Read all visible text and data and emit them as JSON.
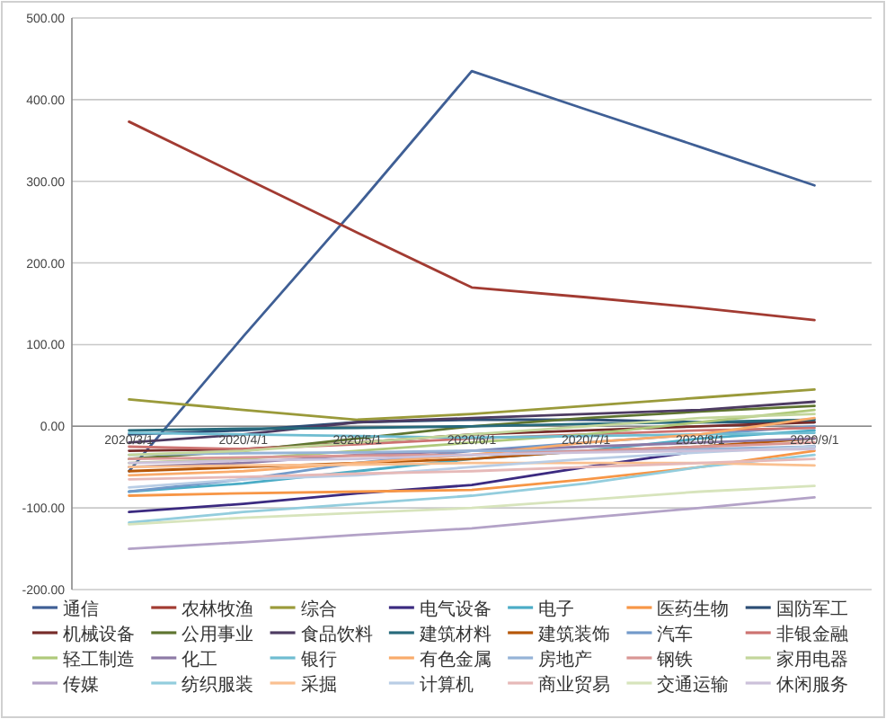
{
  "chart_data": {
    "type": "line",
    "categories": [
      "2020/3/1",
      "2020/4/1",
      "2020/5/1",
      "2020/6/1",
      "2020/7/1",
      "2020/8/1",
      "2020/9/1"
    ],
    "ylim": [
      -200,
      500
    ],
    "yticks": [
      {
        "value": -200,
        "label": "-200.00"
      },
      {
        "value": -100,
        "label": "-100.00"
      },
      {
        "value": 0,
        "label": "0.00"
      },
      {
        "value": 100,
        "label": "100.00"
      },
      {
        "value": 200,
        "label": "200.00"
      },
      {
        "value": 300,
        "label": "300.00"
      },
      {
        "value": 400,
        "label": "400.00"
      },
      {
        "value": 500,
        "label": "500.00"
      }
    ],
    "grid": "y",
    "legend": "bottom",
    "series": [
      {
        "name": "通信",
        "color": "#3f5f95",
        "values": [
          -55,
          110,
          270,
          435,
          388,
          342,
          295
        ]
      },
      {
        "name": "农林牧渔",
        "color": "#a23b32",
        "values": [
          373,
          305,
          237,
          170,
          158,
          145,
          130
        ]
      },
      {
        "name": "综合",
        "color": "#9a9a3a",
        "values": [
          33,
          20,
          8,
          15,
          25,
          35,
          45
        ]
      },
      {
        "name": "电气设备",
        "color": "#3b2a80",
        "values": [
          -105,
          -95,
          -82,
          -72,
          -50,
          -30,
          -25
        ]
      },
      {
        "name": "电子",
        "color": "#4bacc6",
        "values": [
          -80,
          -70,
          -55,
          -40,
          -30,
          -15,
          -5
        ]
      },
      {
        "name": "医药生物",
        "color": "#f79646",
        "values": [
          -85,
          -82,
          -80,
          -78,
          -65,
          -50,
          -30
        ]
      },
      {
        "name": "国防军工",
        "color": "#2c4d75",
        "values": [
          -10,
          -5,
          5,
          8,
          8,
          5,
          5
        ]
      },
      {
        "name": "机械设备",
        "color": "#772c2a",
        "values": [
          -30,
          -28,
          -20,
          -10,
          -5,
          0,
          5
        ]
      },
      {
        "name": "公用事业",
        "color": "#5f7530",
        "values": [
          -40,
          -30,
          -15,
          0,
          10,
          18,
          25
        ]
      },
      {
        "name": "食品饮料",
        "color": "#4d3b62",
        "values": [
          -20,
          -10,
          5,
          10,
          15,
          20,
          30
        ]
      },
      {
        "name": "建筑材料",
        "color": "#276a7c",
        "values": [
          -5,
          -3,
          -2,
          0,
          3,
          5,
          8
        ]
      },
      {
        "name": "建筑装饰",
        "color": "#b65708",
        "values": [
          -55,
          -50,
          -45,
          -40,
          -30,
          -25,
          -15
        ]
      },
      {
        "name": "汽车",
        "color": "#729aca",
        "values": [
          -80,
          -65,
          -45,
          -30,
          -20,
          -10,
          0
        ]
      },
      {
        "name": "非银金融",
        "color": "#cd7371",
        "values": [
          -25,
          -28,
          -22,
          -15,
          -10,
          -5,
          -2
        ]
      },
      {
        "name": "轻工制造",
        "color": "#afc97a",
        "values": [
          -45,
          -40,
          -30,
          -20,
          -10,
          5,
          20
        ]
      },
      {
        "name": "化工",
        "color": "#8d7aa6",
        "values": [
          -50,
          -45,
          -35,
          -30,
          -25,
          -20,
          -15
        ]
      },
      {
        "name": "银行",
        "color": "#6fbdd1",
        "values": [
          -8,
          -10,
          -12,
          -14,
          -12,
          -10,
          -8
        ]
      },
      {
        "name": "有色金属",
        "color": "#f9ab6b",
        "values": [
          -60,
          -55,
          -45,
          -35,
          -20,
          -10,
          10
        ]
      },
      {
        "name": "房地产",
        "color": "#95b3d7",
        "values": [
          -35,
          -33,
          -32,
          -30,
          -30,
          -28,
          -25
        ]
      },
      {
        "name": "钢铁",
        "color": "#d99694",
        "values": [
          -40,
          -38,
          -36,
          -35,
          -30,
          -25,
          -20
        ]
      },
      {
        "name": "家用电器",
        "color": "#c3d69b",
        "values": [
          -35,
          -30,
          -20,
          -10,
          0,
          10,
          15
        ]
      },
      {
        "name": "传媒",
        "color": "#b3a2c7",
        "values": [
          -150,
          -142,
          -133,
          -125,
          -112,
          -100,
          -87
        ]
      },
      {
        "name": "纺织服装",
        "color": "#93cddd",
        "values": [
          -118,
          -105,
          -95,
          -85,
          -70,
          -50,
          -35
        ]
      },
      {
        "name": "采掘",
        "color": "#fac090",
        "values": [
          -50,
          -48,
          -47,
          -45,
          -45,
          -45,
          -48
        ]
      },
      {
        "name": "计算机",
        "color": "#b9cde5",
        "values": [
          -75,
          -65,
          -60,
          -50,
          -40,
          -32,
          -25
        ]
      },
      {
        "name": "商业贸易",
        "color": "#e6b9b8",
        "values": [
          -65,
          -62,
          -58,
          -55,
          -50,
          -45,
          -40
        ]
      },
      {
        "name": "交通运输",
        "color": "#d7e4bc",
        "values": [
          -120,
          -112,
          -106,
          -100,
          -90,
          -80,
          -73
        ]
      },
      {
        "name": "休闲服务",
        "color": "#ccc1da",
        "values": [
          -45,
          -42,
          -40,
          -35,
          -32,
          -30,
          -28
        ]
      }
    ]
  }
}
